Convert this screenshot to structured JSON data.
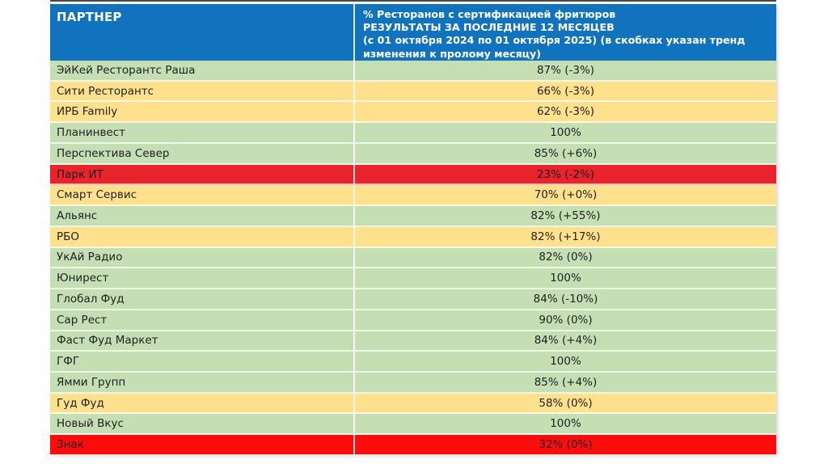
{
  "slide": {
    "header": {
      "partner_label": "ПАРТНЕР",
      "metric_label": "% Ресторанов с сертификацией фритюров\nРЕЗУЛЬТАТЫ ЗА ПОСЛЕДНИЕ 12 МЕСЯЦЕВ\n(с 01 октября 2024 по 01 октября 2025) (в скобках указан тренд\nизменения к пролому месяцу)"
    },
    "rows": [
      {
        "partner": "ЭйКей Ресторантс Раша",
        "value": "87% (-3%)",
        "status": "green"
      },
      {
        "partner": "Сити Ресторантс",
        "value": "66% (-3%)",
        "status": "yellow"
      },
      {
        "partner": "ИРБ Family",
        "value": "62% (-3%)",
        "status": "yellow"
      },
      {
        "partner": "Планинвест",
        "value": "100%",
        "status": "green"
      },
      {
        "partner": "Перспектива Север",
        "value": "85% (+6%)",
        "status": "green"
      },
      {
        "partner": "Парк ИТ",
        "value": "23% (-2%)",
        "status": "red"
      },
      {
        "partner": "Смарт Сервис",
        "value": "70% (+0%)",
        "status": "yellow"
      },
      {
        "partner": "Альянс",
        "value": "82% (+55%)",
        "status": "green"
      },
      {
        "partner": "РБО",
        "value": "82% (+17%)",
        "status": "yellow"
      },
      {
        "partner": "УкАй Радио",
        "value": "82% (0%)",
        "status": "green"
      },
      {
        "partner": "Юнирест",
        "value": "100%",
        "status": "green"
      },
      {
        "partner": "Глобал Фуд",
        "value": "84% (-10%)",
        "status": "green"
      },
      {
        "partner": "Сар Рест",
        "value": "90% (0%)",
        "status": "green"
      },
      {
        "partner": "Фаст Фуд Маркет",
        "value": "84% (+4%)",
        "status": "green"
      },
      {
        "partner": "ГФГ",
        "value": "100%",
        "status": "green"
      },
      {
        "partner": "Ямми Групп",
        "value": "85% (+4%)",
        "status": "green"
      },
      {
        "partner": "Гуд Фуд",
        "value": "58% (0%)",
        "status": "yellow"
      },
      {
        "partner": "Новый Вкус",
        "value": "100%",
        "status": "green"
      },
      {
        "partner": "Знак",
        "value": "32% (0%)",
        "status": "red_bright"
      }
    ],
    "colors": {
      "header_bg": "#1173BD",
      "header_text": "#FFFFFF",
      "green": "#C5DEB3",
      "yellow": "#FFE08C",
      "red": "#E8232B",
      "red_bright": "#FB0D0D",
      "text": "#1F1F1F"
    }
  }
}
